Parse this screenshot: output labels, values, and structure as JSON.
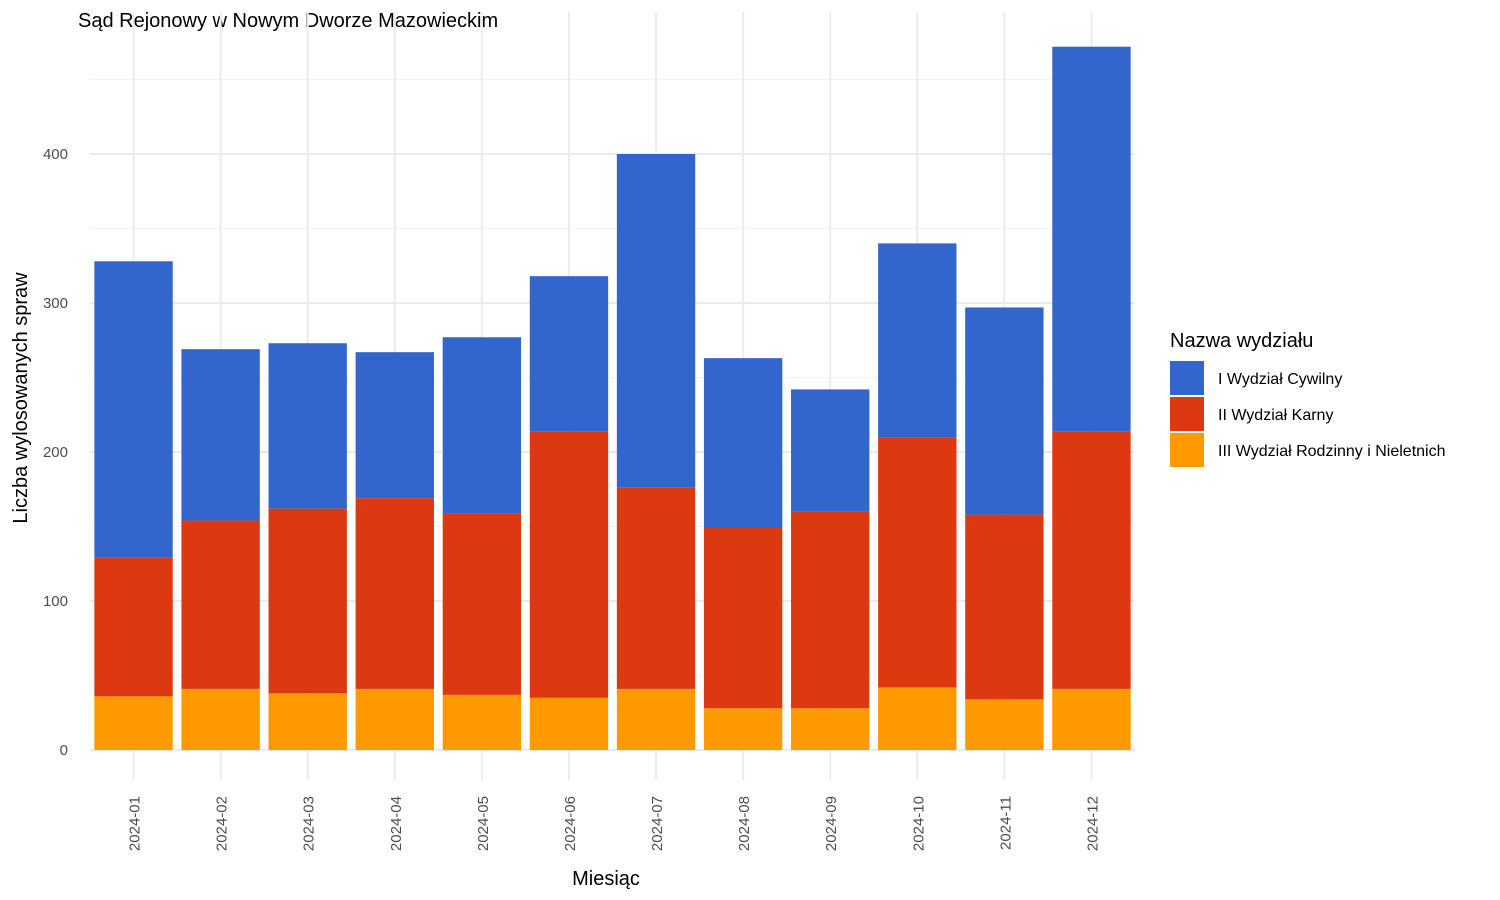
{
  "chart_data": {
    "type": "bar",
    "stacked": true,
    "title": "Sąd Rejonowy w Nowym Dworze Mazowieckim",
    "xlabel": "Miesiąc",
    "ylabel": "Liczba wylosowanych spraw",
    "ylim": [
      0,
      475
    ],
    "yticks": [
      0,
      100,
      200,
      300,
      400
    ],
    "grid": true,
    "legend_title": "Nazwa wydziału",
    "legend_position": "right",
    "categories": [
      "2024-01",
      "2024-02",
      "2024-03",
      "2024-04",
      "2024-05",
      "2024-06",
      "2024-07",
      "2024-08",
      "2024-09",
      "2024-10",
      "2024-11",
      "2024-12"
    ],
    "series": [
      {
        "name": "III Wydział Rodzinny i Nieletnich",
        "color": "#ff9900",
        "values": [
          36,
          41,
          38,
          41,
          37,
          35,
          41,
          28,
          28,
          42,
          34,
          41
        ]
      },
      {
        "name": "II Wydział Karny",
        "color": "#dc3912",
        "values": [
          93,
          113,
          124,
          128,
          122,
          179,
          135,
          121,
          132,
          168,
          124,
          173
        ]
      },
      {
        "name": "I Wydział Cywilny",
        "color": "#3366cc",
        "values": [
          199,
          115,
          111,
          98,
          118,
          104,
          224,
          114,
          82,
          130,
          139,
          258
        ]
      }
    ],
    "legend_order": [
      "I Wydział Cywilny",
      "II Wydział Karny",
      "III Wydział Rodzinny i Nieletnich"
    ]
  }
}
